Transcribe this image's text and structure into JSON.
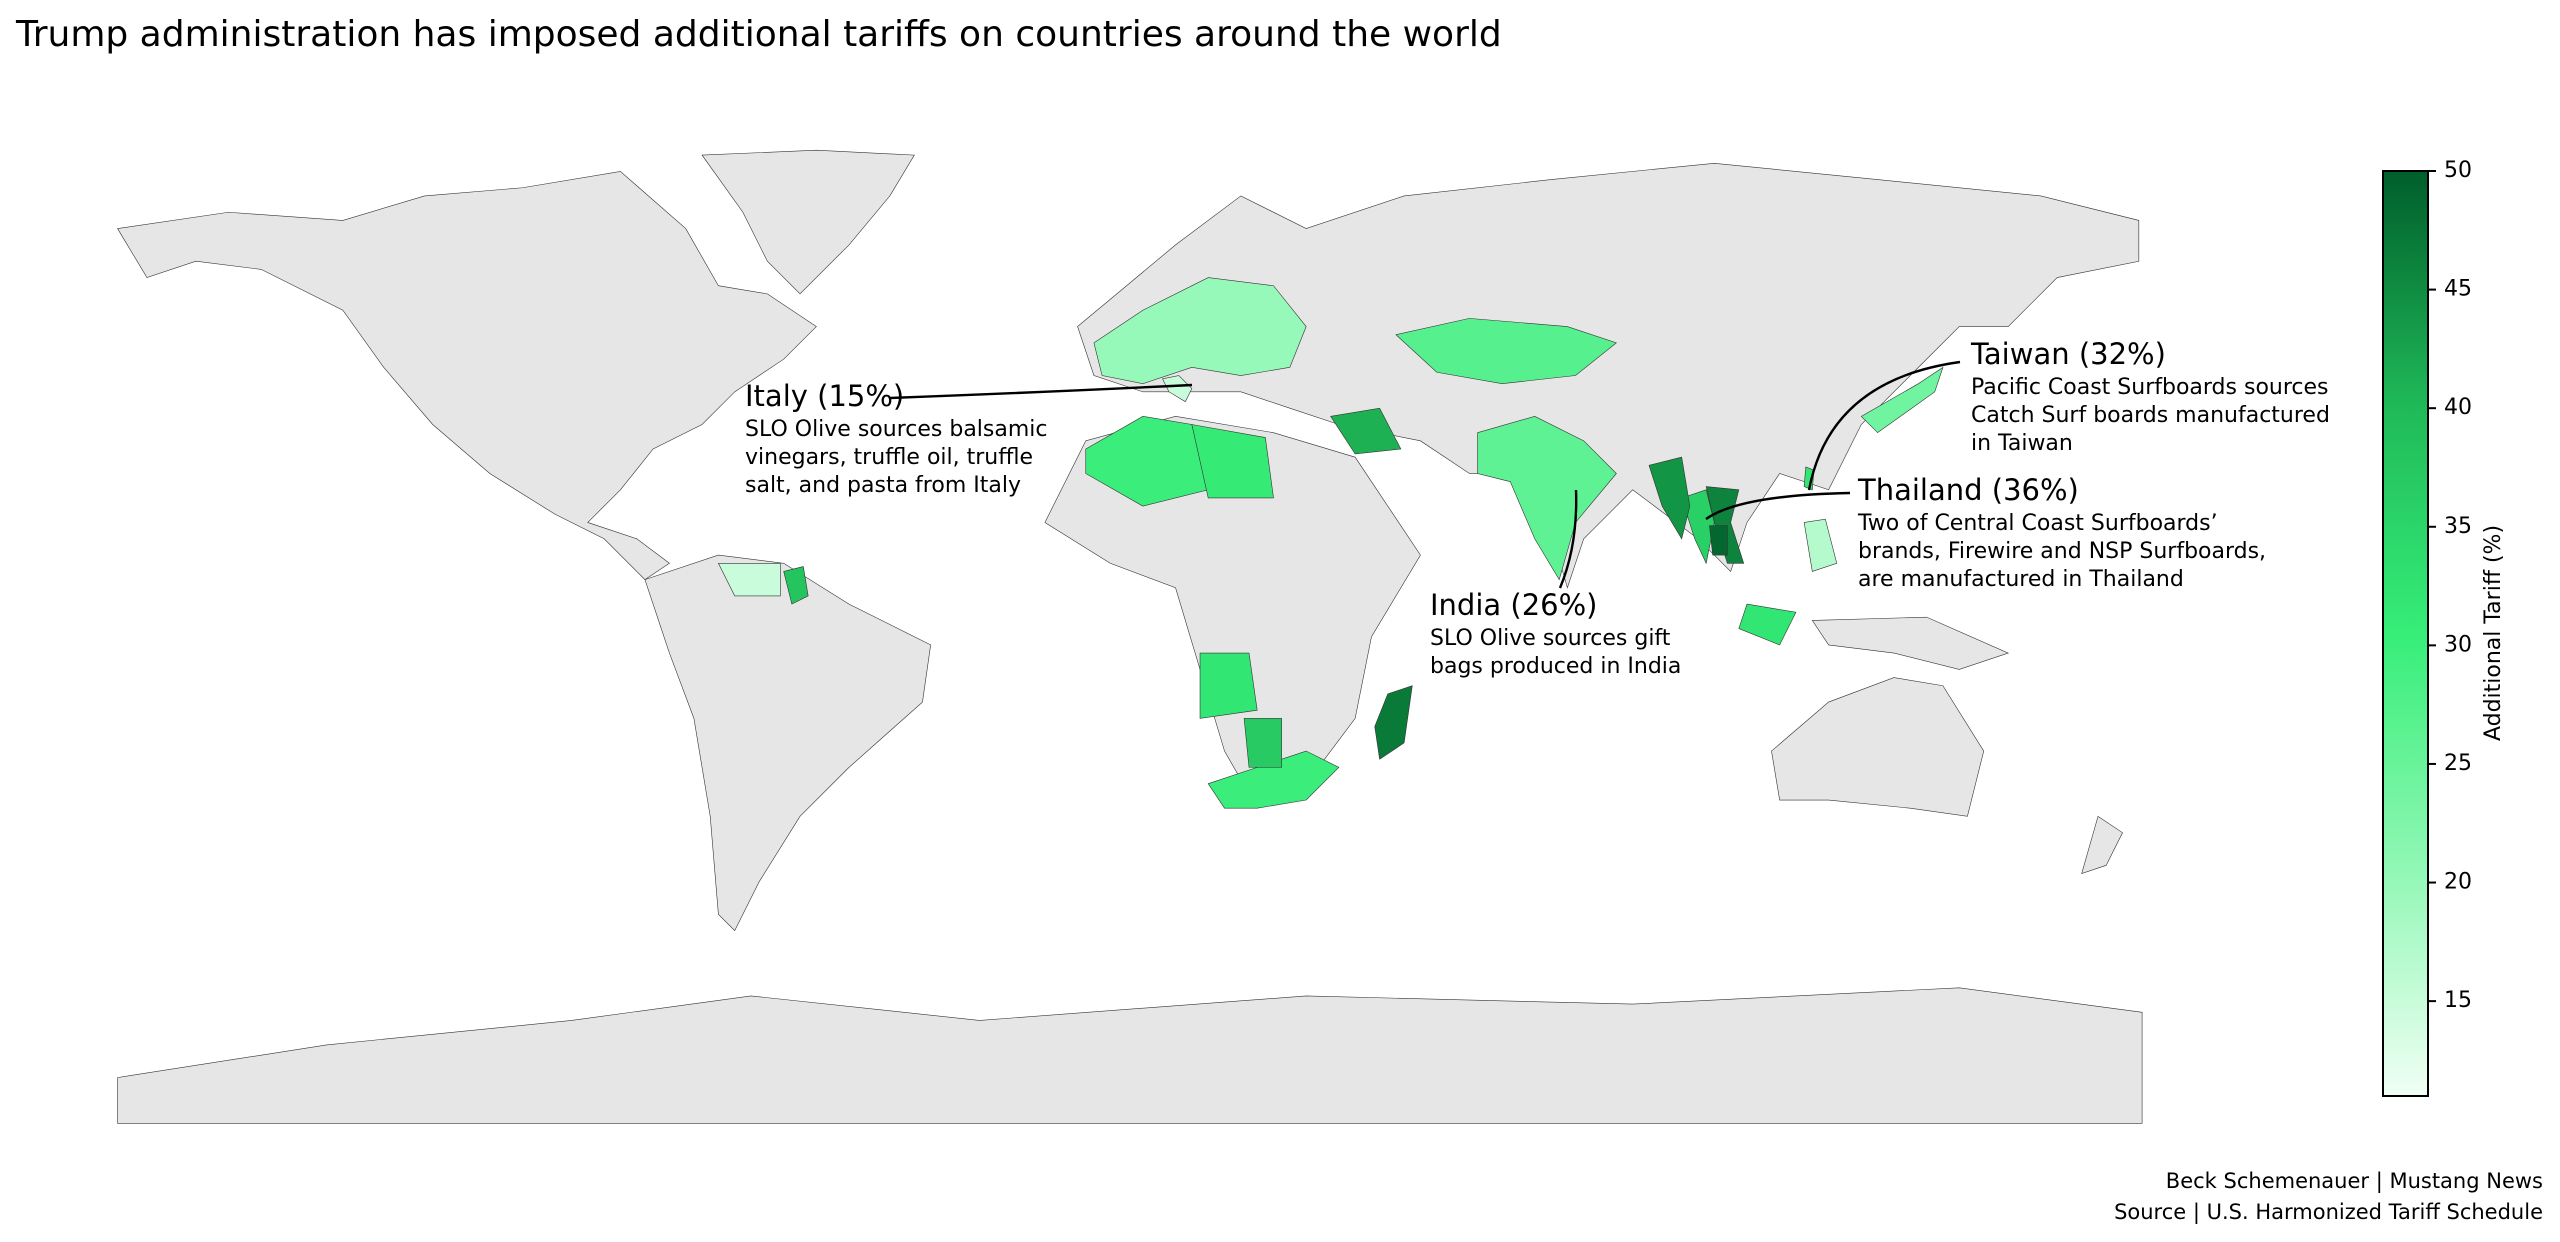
{
  "chart_data": {
    "type": "choropleth",
    "title": "Trump administration has imposed additional tariffs on countries around the world",
    "regions": [
      15,
      26,
      36,
      32,
      46,
      44,
      27,
      30,
      31,
      41,
      30,
      32,
      47,
      32,
      24,
      20,
      38,
      15,
      37,
      49,
      17
    ],
    "colorbar": {
      "label": "Additional Tariff (%)",
      "range": [
        11,
        50
      ],
      "ticks": [
        15,
        20,
        25,
        30,
        35,
        40,
        45,
        50
      ],
      "colors": [
        "#f0fff4",
        "#8ff7b4",
        "#36ee78",
        "#1fb858",
        "#005e2a"
      ]
    },
    "annotations": [
      {
        "title": "Italy (15%)",
        "lines": [
          "SLO Olive sources balsamic",
          "vinegars, truffle oil, truffle",
          "salt, and pasta from Italy"
        ]
      },
      {
        "title": "Taiwan (32%)",
        "lines": [
          "Pacific Coast Surfboards sources",
          "Catch Surf boards manufactured",
          "in Taiwan"
        ]
      },
      {
        "title": "Thailand (36%)",
        "lines": [
          "Two of Central Coast Surfboards’",
          "brands, Firewire and NSP Surfboards,",
          "are manufactured in Thailand"
        ]
      },
      {
        "title": "India (26%)",
        "lines": [
          "SLO Olive sources gift",
          "bags produced in India"
        ]
      }
    ],
    "credits": [
      "Beck Schemenauer | Mustang News",
      "Source | U.S. Harmonized Tariff Schedule"
    ]
  }
}
